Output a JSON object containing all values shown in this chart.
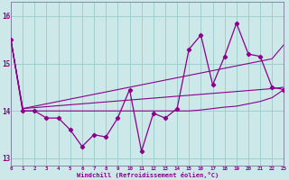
{
  "xlabel": "Windchill (Refroidissement éolien,°C)",
  "hours": [
    0,
    1,
    2,
    3,
    4,
    5,
    6,
    7,
    8,
    9,
    10,
    11,
    12,
    13,
    14,
    15,
    16,
    17,
    18,
    19,
    20,
    21,
    22,
    23
  ],
  "windchill": [
    15.5,
    14.0,
    14.0,
    13.85,
    13.85,
    13.6,
    13.25,
    13.5,
    13.45,
    13.85,
    14.45,
    13.15,
    13.95,
    13.85,
    14.05,
    15.3,
    15.6,
    14.55,
    15.15,
    15.85,
    15.2,
    15.15,
    14.5,
    14.45
  ],
  "upper_line": [
    15.5,
    14.05,
    14.1,
    14.15,
    14.2,
    14.25,
    14.3,
    14.35,
    14.4,
    14.45,
    14.5,
    14.55,
    14.6,
    14.65,
    14.7,
    14.75,
    14.8,
    14.85,
    14.9,
    14.95,
    15.0,
    15.05,
    15.1,
    15.4
  ],
  "mid_line": [
    15.5,
    14.05,
    14.07,
    14.09,
    14.11,
    14.13,
    14.15,
    14.17,
    14.19,
    14.21,
    14.23,
    14.25,
    14.27,
    14.29,
    14.31,
    14.33,
    14.35,
    14.37,
    14.39,
    14.41,
    14.43,
    14.45,
    14.47,
    14.5
  ],
  "lower_line": [
    15.5,
    14.0,
    14.0,
    14.0,
    14.0,
    14.0,
    14.0,
    14.0,
    14.0,
    14.0,
    14.0,
    14.0,
    14.0,
    14.0,
    14.0,
    14.0,
    14.02,
    14.05,
    14.08,
    14.1,
    14.15,
    14.2,
    14.28,
    14.45
  ],
  "line_color": "#8B008B",
  "bg_color": "#cce8e8",
  "grid_color": "#9fcfcf",
  "ylim": [
    12.85,
    16.3
  ],
  "yticks": [
    13,
    14,
    15,
    16
  ],
  "xlim": [
    0,
    23
  ]
}
